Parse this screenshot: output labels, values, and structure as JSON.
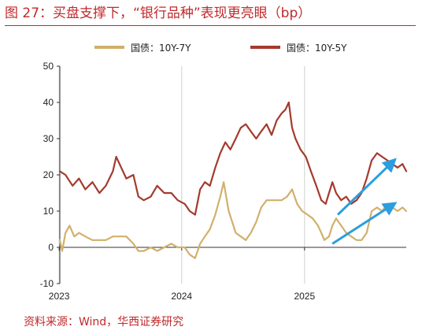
{
  "title": "图 27：买盘支撑下，“银行品种”表现更亮眼（bp）",
  "source": "资料来源：Wind，华西证券研究",
  "colors": {
    "accent": "#c0292b",
    "series_10y_7y": "#d1b06b",
    "series_10y_5y": "#a43a2e",
    "arrow": "#2a9ee0",
    "grid": "#cfcfcf",
    "axis": "#333333"
  },
  "chart_data": {
    "type": "line",
    "xlim": [
      "2023-01-03",
      "2025-10-31"
    ],
    "ylim": [
      -10,
      50
    ],
    "yticks": [
      -10,
      0,
      10,
      20,
      30,
      40,
      50
    ],
    "ytick_labels": [
      "-10",
      "0",
      "10",
      "20",
      "30",
      "40",
      "50"
    ],
    "xticks": [
      "2023-01-01",
      "2024-01-01",
      "2025-01-01"
    ],
    "xtick_labels": [
      "2023",
      "2024",
      "2025"
    ],
    "grid": "vertical at year ticks",
    "legend_position": "top",
    "series": [
      {
        "name": "国债：10Y-7Y",
        "color": "#d1b06b",
        "points": [
          [
            "2023-01-03",
            2
          ],
          [
            "2023-01-10",
            -1
          ],
          [
            "2023-01-20",
            4
          ],
          [
            "2023-02-01",
            6
          ],
          [
            "2023-02-15",
            3
          ],
          [
            "2023-03-01",
            4
          ],
          [
            "2023-03-20",
            3
          ],
          [
            "2023-04-10",
            2
          ],
          [
            "2023-05-01",
            2
          ],
          [
            "2023-05-20",
            2
          ],
          [
            "2023-06-10",
            3
          ],
          [
            "2023-07-01",
            3
          ],
          [
            "2023-07-20",
            3
          ],
          [
            "2023-08-10",
            1
          ],
          [
            "2023-08-25",
            -1
          ],
          [
            "2023-09-10",
            -1
          ],
          [
            "2023-10-01",
            0
          ],
          [
            "2023-10-20",
            -1
          ],
          [
            "2023-11-10",
            0
          ],
          [
            "2023-12-01",
            1
          ],
          [
            "2023-12-20",
            0
          ],
          [
            "2024-01-10",
            0
          ],
          [
            "2024-01-25",
            -2
          ],
          [
            "2024-02-10",
            -3
          ],
          [
            "2024-02-25",
            1
          ],
          [
            "2024-03-10",
            3
          ],
          [
            "2024-03-25",
            5
          ],
          [
            "2024-04-10",
            9
          ],
          [
            "2024-04-25",
            14
          ],
          [
            "2024-05-05",
            18
          ],
          [
            "2024-05-20",
            10
          ],
          [
            "2024-06-10",
            4
          ],
          [
            "2024-06-25",
            3
          ],
          [
            "2024-07-10",
            2
          ],
          [
            "2024-07-25",
            4
          ],
          [
            "2024-08-10",
            7
          ],
          [
            "2024-08-25",
            11
          ],
          [
            "2024-09-10",
            13
          ],
          [
            "2024-09-25",
            13
          ],
          [
            "2024-10-10",
            13
          ],
          [
            "2024-10-25",
            13
          ],
          [
            "2024-11-10",
            14
          ],
          [
            "2024-11-25",
            16
          ],
          [
            "2024-12-10",
            12
          ],
          [
            "2024-12-25",
            10
          ],
          [
            "2025-01-10",
            9
          ],
          [
            "2025-01-25",
            8
          ],
          [
            "2025-02-10",
            6
          ],
          [
            "2025-02-20",
            4
          ],
          [
            "2025-03-01",
            2
          ],
          [
            "2025-03-15",
            3
          ],
          [
            "2025-03-25",
            6
          ],
          [
            "2025-04-05",
            8
          ],
          [
            "2025-04-20",
            6
          ],
          [
            "2025-05-05",
            4
          ],
          [
            "2025-05-20",
            3
          ],
          [
            "2025-06-05",
            2
          ],
          [
            "2025-06-20",
            2
          ],
          [
            "2025-07-05",
            4
          ],
          [
            "2025-07-20",
            10
          ],
          [
            "2025-08-05",
            11
          ],
          [
            "2025-08-20",
            10
          ],
          [
            "2025-09-05",
            12
          ],
          [
            "2025-09-20",
            11
          ],
          [
            "2025-10-05",
            10
          ],
          [
            "2025-10-20",
            11
          ],
          [
            "2025-10-31",
            10
          ]
        ]
      },
      {
        "name": "国债：10Y-5Y",
        "color": "#a43a2e",
        "points": [
          [
            "2023-01-03",
            21
          ],
          [
            "2023-01-20",
            20
          ],
          [
            "2023-02-10",
            17
          ],
          [
            "2023-03-01",
            19
          ],
          [
            "2023-03-20",
            16
          ],
          [
            "2023-04-10",
            18
          ],
          [
            "2023-05-01",
            15
          ],
          [
            "2023-05-20",
            17
          ],
          [
            "2023-06-10",
            21
          ],
          [
            "2023-06-20",
            25
          ],
          [
            "2023-07-05",
            22
          ],
          [
            "2023-07-20",
            19
          ],
          [
            "2023-08-10",
            20
          ],
          [
            "2023-08-25",
            14
          ],
          [
            "2023-09-10",
            13
          ],
          [
            "2023-10-01",
            14
          ],
          [
            "2023-10-20",
            17
          ],
          [
            "2023-11-10",
            15
          ],
          [
            "2023-12-01",
            15
          ],
          [
            "2023-12-20",
            13
          ],
          [
            "2024-01-10",
            12
          ],
          [
            "2024-01-25",
            10
          ],
          [
            "2024-02-10",
            9
          ],
          [
            "2024-02-25",
            16
          ],
          [
            "2024-03-10",
            18
          ],
          [
            "2024-03-25",
            17
          ],
          [
            "2024-04-10",
            22
          ],
          [
            "2024-04-25",
            26
          ],
          [
            "2024-05-10",
            29
          ],
          [
            "2024-05-25",
            27
          ],
          [
            "2024-06-10",
            30
          ],
          [
            "2024-06-25",
            33
          ],
          [
            "2024-07-10",
            34
          ],
          [
            "2024-07-25",
            32
          ],
          [
            "2024-08-10",
            30
          ],
          [
            "2024-08-25",
            32
          ],
          [
            "2024-09-10",
            34
          ],
          [
            "2024-09-25",
            31
          ],
          [
            "2024-10-10",
            35
          ],
          [
            "2024-10-25",
            37
          ],
          [
            "2024-11-05",
            38
          ],
          [
            "2024-11-15",
            40
          ],
          [
            "2024-11-25",
            33
          ],
          [
            "2024-12-05",
            30
          ],
          [
            "2024-12-20",
            27
          ],
          [
            "2025-01-05",
            25
          ],
          [
            "2025-01-20",
            21
          ],
          [
            "2025-02-05",
            17
          ],
          [
            "2025-02-20",
            13
          ],
          [
            "2025-03-05",
            12
          ],
          [
            "2025-03-15",
            15
          ],
          [
            "2025-03-25",
            18
          ],
          [
            "2025-04-05",
            15
          ],
          [
            "2025-04-20",
            13
          ],
          [
            "2025-05-05",
            14
          ],
          [
            "2025-05-20",
            12
          ],
          [
            "2025-06-05",
            13
          ],
          [
            "2025-06-20",
            15
          ],
          [
            "2025-07-05",
            19
          ],
          [
            "2025-07-20",
            24
          ],
          [
            "2025-08-05",
            26
          ],
          [
            "2025-08-20",
            25
          ],
          [
            "2025-09-05",
            24
          ],
          [
            "2025-09-20",
            23
          ],
          [
            "2025-10-05",
            22
          ],
          [
            "2025-10-20",
            23
          ],
          [
            "2025-10-31",
            21
          ]
        ]
      }
    ],
    "annotations": [
      {
        "type": "arrow",
        "color": "#2a9ee0",
        "from": [
          "2025-04-10",
          9
        ],
        "to": [
          "2025-09-25",
          24
        ]
      },
      {
        "type": "arrow",
        "color": "#2a9ee0",
        "from": [
          "2025-03-25",
          1
        ],
        "to": [
          "2025-09-25",
          12
        ]
      }
    ]
  }
}
